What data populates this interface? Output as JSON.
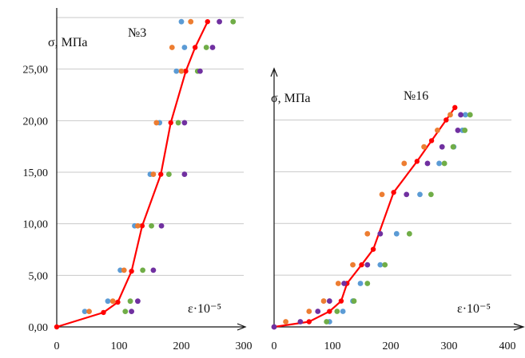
{
  "chart_data": [
    {
      "type": "scatter",
      "title": "№3",
      "ylabel": "σ, МПа",
      "xlabel": "ε·10⁻⁵",
      "xlim": [
        0,
        300
      ],
      "ylim": [
        0,
        30
      ],
      "x_ticks": [
        "0",
        "100",
        "200",
        "300"
      ],
      "y_ticks": [
        "0,00",
        "5,00",
        "10,00",
        "15,00",
        "20,00",
        "25,00"
      ],
      "x_tick_values": [
        0,
        100,
        200,
        300
      ],
      "y_tick_values": [
        0,
        5,
        10,
        15,
        20,
        25
      ],
      "grid": "horizontal",
      "series": [
        {
          "color": "#ff0000",
          "style": "line",
          "points": [
            [
              0,
              0
            ],
            [
              75,
              1.4
            ],
            [
              98,
              2.4
            ],
            [
              120,
              5.4
            ],
            [
              137,
              9.8
            ],
            [
              167,
              14.8
            ],
            [
              183,
              19.8
            ],
            [
              207,
              24.8
            ],
            [
              222,
              27.1
            ],
            [
              242,
              29.6
            ]
          ]
        },
        {
          "color": "#5b9bd5",
          "style": "points",
          "points": [
            [
              45,
              1.5
            ],
            [
              82,
              2.5
            ],
            [
              102,
              5.5
            ],
            [
              125,
              9.8
            ],
            [
              150,
              14.8
            ],
            [
              165,
              19.8
            ],
            [
              192,
              24.8
            ],
            [
              205,
              27.1
            ],
            [
              200,
              29.6
            ]
          ]
        },
        {
          "color": "#ed7d31",
          "style": "points",
          "points": [
            [
              52,
              1.5
            ],
            [
              90,
              2.5
            ],
            [
              108,
              5.5
            ],
            [
              130,
              9.8
            ],
            [
              155,
              14.8
            ],
            [
              160,
              19.8
            ],
            [
              200,
              24.8
            ],
            [
              185,
              27.1
            ],
            [
              215,
              29.6
            ]
          ]
        },
        {
          "color": "#70ad47",
          "style": "points",
          "points": [
            [
              110,
              1.5
            ],
            [
              118,
              2.5
            ],
            [
              138,
              5.5
            ],
            [
              152,
              9.8
            ],
            [
              180,
              14.8
            ],
            [
              195,
              19.8
            ],
            [
              226,
              24.8
            ],
            [
              240,
              27.1
            ],
            [
              283,
              29.6
            ]
          ]
        },
        {
          "color": "#7030a0",
          "style": "points",
          "points": [
            [
              120,
              1.5
            ],
            [
              130,
              2.5
            ],
            [
              155,
              5.5
            ],
            [
              168,
              9.8
            ],
            [
              205,
              14.8
            ],
            [
              205,
              19.8
            ],
            [
              230,
              24.8
            ],
            [
              250,
              27.1
            ],
            [
              261,
              29.6
            ]
          ]
        }
      ]
    },
    {
      "type": "scatter",
      "title": "№16",
      "ylabel": "σ, МПа",
      "xlabel": "ε·10⁻⁵",
      "xlim": [
        0,
        400
      ],
      "ylim": [
        0,
        22.5
      ],
      "x_ticks": [
        "0",
        "100",
        "200",
        "300",
        "400"
      ],
      "x_tick_values": [
        0,
        100,
        200,
        300,
        400
      ],
      "y_tick_values": [
        5,
        10,
        15,
        20
      ],
      "grid": "horizontal",
      "series": [
        {
          "color": "#ff0000",
          "style": "line",
          "points": [
            [
              0,
              0
            ],
            [
              60,
              0.5
            ],
            [
              95,
              1.5
            ],
            [
              115,
              2.5
            ],
            [
              125,
              4.2
            ],
            [
              150,
              6.0
            ],
            [
              170,
              7.5
            ],
            [
              205,
              13.0
            ],
            [
              245,
              16.0
            ],
            [
              270,
              18.0
            ],
            [
              295,
              20.0
            ],
            [
              310,
              21.2
            ]
          ]
        },
        {
          "color": "#5b9bd5",
          "style": "points",
          "points": [
            [
              95,
              0.5
            ],
            [
              118,
              1.5
            ],
            [
              135,
              2.5
            ],
            [
              148,
              4.2
            ],
            [
              182,
              6.0
            ],
            [
              210,
              9.0
            ],
            [
              250,
              12.8
            ],
            [
              283,
              15.8
            ],
            [
              308,
              17.4
            ],
            [
              323,
              19.0
            ],
            [
              328,
              20.5
            ]
          ]
        },
        {
          "color": "#ed7d31",
          "style": "points",
          "points": [
            [
              20,
              0.5
            ],
            [
              60,
              1.5
            ],
            [
              85,
              2.5
            ],
            [
              110,
              4.2
            ],
            [
              135,
              6.0
            ],
            [
              160,
              9.0
            ],
            [
              185,
              12.8
            ],
            [
              223,
              15.8
            ],
            [
              257,
              17.4
            ],
            [
              280,
              19.0
            ],
            [
              302,
              20.5
            ]
          ]
        },
        {
          "color": "#70ad47",
          "style": "points",
          "points": [
            [
              90,
              0.5
            ],
            [
              108,
              1.5
            ],
            [
              137,
              2.5
            ],
            [
              160,
              4.2
            ],
            [
              190,
              6.0
            ],
            [
              232,
              9.0
            ],
            [
              269,
              12.8
            ],
            [
              292,
              15.8
            ],
            [
              307,
              17.4
            ],
            [
              327,
              19.0
            ],
            [
              336,
              20.5
            ]
          ]
        },
        {
          "color": "#7030a0",
          "style": "points",
          "points": [
            [
              0,
              0
            ],
            [
              45,
              0.5
            ],
            [
              75,
              1.5
            ],
            [
              95,
              2.5
            ],
            [
              120,
              4.2
            ],
            [
              160,
              6.0
            ],
            [
              182,
              9.0
            ],
            [
              227,
              12.8
            ],
            [
              263,
              15.8
            ],
            [
              288,
              17.4
            ],
            [
              315,
              19.0
            ],
            [
              320,
              20.5
            ]
          ]
        }
      ]
    }
  ]
}
